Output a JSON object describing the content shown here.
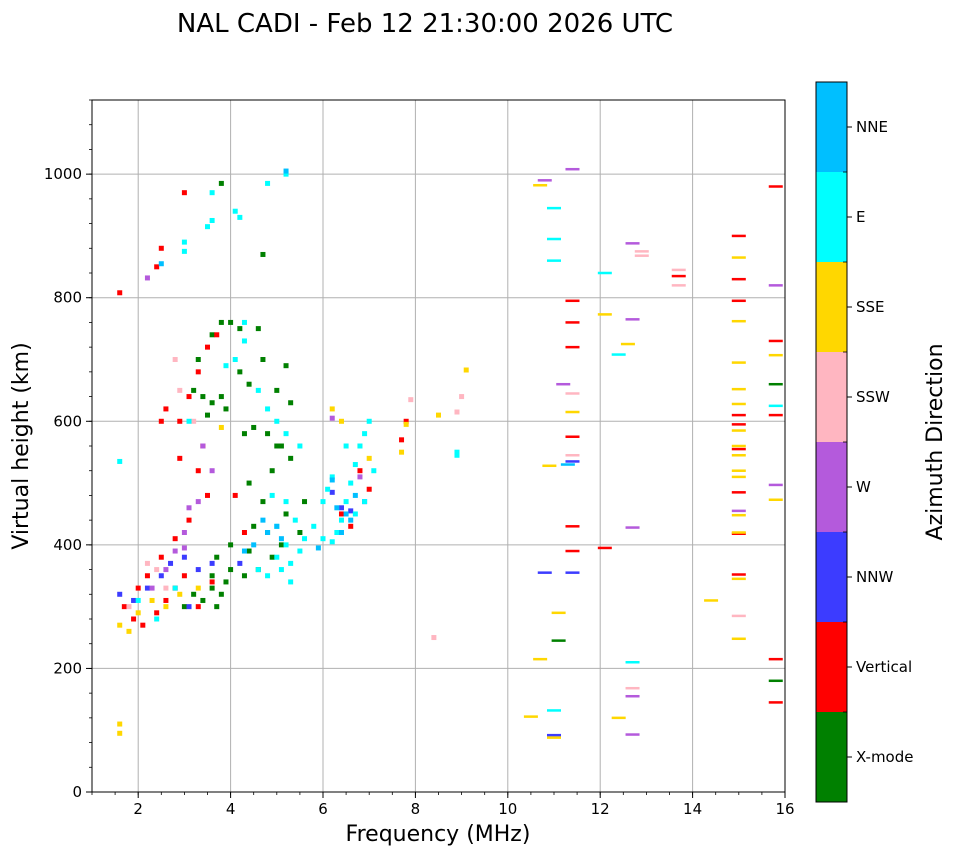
{
  "chart_data": {
    "type": "scatter",
    "title": "NAL CADI - Feb 12 21:30:00 2026 UTC",
    "xlabel": "Frequency (MHz)",
    "ylabel": "Virtual height (km)",
    "xlim": [
      1,
      16
    ],
    "ylim": [
      0,
      1120
    ],
    "xticks": [
      2,
      4,
      6,
      8,
      10,
      12,
      14,
      16
    ],
    "yticks": [
      0,
      200,
      400,
      600,
      800,
      1000
    ],
    "grid": true,
    "colorbar": {
      "title": "Azimuth Direction",
      "entries": [
        {
          "name": "X-mode",
          "color": "#008000"
        },
        {
          "name": "Vertical",
          "color": "#ff0000"
        },
        {
          "name": "NNW",
          "color": "#3c3cff"
        },
        {
          "name": "W",
          "color": "#b45adc"
        },
        {
          "name": "SSW",
          "color": "#ffb6c1"
        },
        {
          "name": "SSE",
          "color": "#ffd700"
        },
        {
          "name": "E",
          "color": "#00ffff"
        },
        {
          "name": "NNE",
          "color": "#00bfff"
        }
      ]
    },
    "series": [
      {
        "name": "X-mode",
        "points": [
          [
            3.2,
            650
          ],
          [
            3.4,
            640
          ],
          [
            3.6,
            630
          ],
          [
            3.8,
            640
          ],
          [
            3.5,
            610
          ],
          [
            3.9,
            620
          ],
          [
            3.3,
            700
          ],
          [
            3.6,
            740
          ],
          [
            3.8,
            760
          ],
          [
            4.0,
            760
          ],
          [
            4.2,
            750
          ],
          [
            4.6,
            750
          ],
          [
            4.2,
            680
          ],
          [
            4.4,
            660
          ],
          [
            4.7,
            700
          ],
          [
            5.0,
            650
          ],
          [
            5.2,
            690
          ],
          [
            5.3,
            630
          ],
          [
            4.5,
            590
          ],
          [
            4.8,
            580
          ],
          [
            5.0,
            560
          ],
          [
            5.3,
            540
          ],
          [
            4.9,
            520
          ],
          [
            4.4,
            500
          ],
          [
            4.7,
            470
          ],
          [
            5.2,
            450
          ],
          [
            4.5,
            430
          ],
          [
            4.8,
            420
          ],
          [
            4.0,
            400
          ],
          [
            4.4,
            390
          ],
          [
            3.7,
            380
          ],
          [
            4.0,
            360
          ],
          [
            4.3,
            350
          ],
          [
            4.6,
            360
          ],
          [
            3.6,
            350
          ],
          [
            3.9,
            340
          ],
          [
            3.6,
            330
          ],
          [
            3.8,
            320
          ],
          [
            3.2,
            320
          ],
          [
            3.4,
            310
          ],
          [
            3.7,
            300
          ],
          [
            3.0,
            300
          ],
          [
            4.9,
            380
          ],
          [
            5.1,
            400
          ],
          [
            5.5,
            420
          ],
          [
            4.7,
            870
          ],
          [
            3.8,
            985
          ],
          [
            4.3,
            580
          ],
          [
            5.6,
            470
          ],
          [
            5.1,
            560
          ],
          [
            15.8,
            660
          ],
          [
            15.8,
            180
          ],
          [
            11.1,
            245
          ]
        ]
      },
      {
        "name": "Vertical",
        "points": [
          [
            1.6,
            808
          ],
          [
            2.5,
            880
          ],
          [
            2.4,
            850
          ],
          [
            3.0,
            970
          ],
          [
            2.5,
            600
          ],
          [
            2.6,
            620
          ],
          [
            2.9,
            600
          ],
          [
            3.1,
            640
          ],
          [
            3.3,
            680
          ],
          [
            3.5,
            720
          ],
          [
            3.7,
            740
          ],
          [
            3.4,
            560
          ],
          [
            2.9,
            540
          ],
          [
            3.3,
            520
          ],
          [
            3.5,
            480
          ],
          [
            3.1,
            440
          ],
          [
            2.8,
            410
          ],
          [
            2.5,
            380
          ],
          [
            2.2,
            350
          ],
          [
            2.0,
            330
          ],
          [
            1.7,
            300
          ],
          [
            1.9,
            280
          ],
          [
            2.1,
            270
          ],
          [
            2.4,
            290
          ],
          [
            2.6,
            310
          ],
          [
            2.8,
            330
          ],
          [
            3.0,
            350
          ],
          [
            3.3,
            300
          ],
          [
            3.6,
            340
          ],
          [
            4.1,
            480
          ],
          [
            4.3,
            420
          ],
          [
            6.8,
            520
          ],
          [
            7.0,
            490
          ],
          [
            7.8,
            600
          ],
          [
            7.7,
            570
          ],
          [
            6.4,
            450
          ],
          [
            6.6,
            430
          ],
          [
            11.4,
            795
          ],
          [
            11.4,
            760
          ],
          [
            11.4,
            720
          ],
          [
            11.4,
            575
          ],
          [
            11.4,
            430
          ],
          [
            11.4,
            390
          ],
          [
            12.1,
            395
          ],
          [
            13.7,
            835
          ],
          [
            15.0,
            900
          ],
          [
            15.0,
            830
          ],
          [
            15.0,
            795
          ],
          [
            15.0,
            610
          ],
          [
            15.0,
            595
          ],
          [
            15.0,
            555
          ],
          [
            15.0,
            485
          ],
          [
            15.0,
            418
          ],
          [
            15.0,
            352
          ],
          [
            15.8,
            980
          ],
          [
            15.8,
            730
          ],
          [
            15.8,
            610
          ],
          [
            15.8,
            215
          ],
          [
            15.8,
            145
          ]
        ]
      },
      {
        "name": "NNW",
        "points": [
          [
            1.6,
            320
          ],
          [
            1.9,
            310
          ],
          [
            2.2,
            330
          ],
          [
            2.5,
            350
          ],
          [
            2.7,
            370
          ],
          [
            3.0,
            380
          ],
          [
            3.3,
            360
          ],
          [
            3.6,
            370
          ],
          [
            3.1,
            300
          ],
          [
            4.2,
            370
          ],
          [
            6.4,
            460
          ],
          [
            6.6,
            455
          ],
          [
            6.9,
            470
          ],
          [
            6.2,
            485
          ],
          [
            10.8,
            355
          ],
          [
            11.4,
            355
          ],
          [
            11.4,
            535
          ],
          [
            11.0,
            92
          ]
        ]
      },
      {
        "name": "W",
        "points": [
          [
            2.2,
            832
          ],
          [
            2.8,
            390
          ],
          [
            3.0,
            420
          ],
          [
            3.3,
            470
          ],
          [
            3.6,
            520
          ],
          [
            3.0,
            395
          ],
          [
            2.6,
            360
          ],
          [
            2.3,
            330
          ],
          [
            3.4,
            560
          ],
          [
            3.1,
            460
          ],
          [
            6.2,
            605
          ],
          [
            6.8,
            510
          ],
          [
            10.8,
            990
          ],
          [
            11.2,
            660
          ],
          [
            11.4,
            1008
          ],
          [
            12.7,
            888
          ],
          [
            12.7,
            765
          ],
          [
            12.7,
            428
          ],
          [
            12.7,
            155
          ],
          [
            12.7,
            93
          ],
          [
            15.0,
            455
          ],
          [
            15.8,
            820
          ],
          [
            15.8,
            497
          ]
        ]
      },
      {
        "name": "SSW",
        "points": [
          [
            2.8,
            700
          ],
          [
            2.9,
            650
          ],
          [
            3.2,
            600
          ],
          [
            2.2,
            370
          ],
          [
            2.4,
            360
          ],
          [
            2.6,
            330
          ],
          [
            1.8,
            300
          ],
          [
            7.9,
            635
          ],
          [
            8.4,
            250
          ],
          [
            8.9,
            615
          ],
          [
            9.0,
            640
          ],
          [
            11.4,
            645
          ],
          [
            11.4,
            545
          ],
          [
            12.9,
            875
          ],
          [
            12.9,
            868
          ],
          [
            13.7,
            845
          ],
          [
            13.7,
            820
          ],
          [
            12.7,
            168
          ],
          [
            15.0,
            285
          ]
        ]
      },
      {
        "name": "SSE",
        "points": [
          [
            1.6,
            110
          ],
          [
            1.6,
            95
          ],
          [
            1.6,
            270
          ],
          [
            1.8,
            260
          ],
          [
            2.0,
            290
          ],
          [
            2.3,
            310
          ],
          [
            2.6,
            300
          ],
          [
            2.9,
            320
          ],
          [
            3.3,
            330
          ],
          [
            3.8,
            590
          ],
          [
            6.2,
            620
          ],
          [
            6.4,
            600
          ],
          [
            6.8,
            560
          ],
          [
            7.0,
            540
          ],
          [
            7.8,
            595
          ],
          [
            7.7,
            550
          ],
          [
            8.5,
            610
          ],
          [
            9.1,
            683
          ],
          [
            10.7,
            982
          ],
          [
            10.9,
            528
          ],
          [
            10.7,
            215
          ],
          [
            10.5,
            122
          ],
          [
            11.1,
            290
          ],
          [
            11.4,
            615
          ],
          [
            11.0,
            88
          ],
          [
            12.1,
            773
          ],
          [
            12.6,
            725
          ],
          [
            12.4,
            120
          ],
          [
            14.4,
            310
          ],
          [
            15.0,
            865
          ],
          [
            15.0,
            762
          ],
          [
            15.0,
            695
          ],
          [
            15.0,
            652
          ],
          [
            15.0,
            628
          ],
          [
            15.0,
            585
          ],
          [
            15.0,
            560
          ],
          [
            15.0,
            545
          ],
          [
            15.0,
            520
          ],
          [
            15.0,
            510
          ],
          [
            15.0,
            448
          ],
          [
            15.0,
            420
          ],
          [
            15.0,
            345
          ],
          [
            15.0,
            248
          ],
          [
            15.8,
            707
          ],
          [
            15.8,
            473
          ]
        ]
      },
      {
        "name": "E",
        "points": [
          [
            3.0,
            890
          ],
          [
            3.0,
            875
          ],
          [
            3.6,
            925
          ],
          [
            3.5,
            915
          ],
          [
            3.6,
            970
          ],
          [
            4.1,
            940
          ],
          [
            4.2,
            930
          ],
          [
            4.8,
            985
          ],
          [
            5.2,
            1000
          ],
          [
            4.3,
            760
          ],
          [
            4.3,
            730
          ],
          [
            4.1,
            700
          ],
          [
            3.9,
            690
          ],
          [
            4.6,
            650
          ],
          [
            4.8,
            620
          ],
          [
            5.0,
            600
          ],
          [
            5.2,
            580
          ],
          [
            5.5,
            560
          ],
          [
            4.9,
            480
          ],
          [
            5.2,
            470
          ],
          [
            5.4,
            440
          ],
          [
            5.0,
            430
          ],
          [
            5.2,
            400
          ],
          [
            5.5,
            390
          ],
          [
            5.0,
            380
          ],
          [
            5.3,
            370
          ],
          [
            5.1,
            360
          ],
          [
            4.8,
            350
          ],
          [
            5.3,
            340
          ],
          [
            4.6,
            360
          ],
          [
            5.6,
            410
          ],
          [
            5.8,
            430
          ],
          [
            6.0,
            410
          ],
          [
            6.2,
            405
          ],
          [
            6.3,
            420
          ],
          [
            6.4,
            440
          ],
          [
            6.5,
            470
          ],
          [
            6.6,
            500
          ],
          [
            6.7,
            530
          ],
          [
            6.8,
            560
          ],
          [
            6.9,
            580
          ],
          [
            7.0,
            600
          ],
          [
            6.5,
            560
          ],
          [
            6.9,
            470
          ],
          [
            6.7,
            450
          ],
          [
            7.1,
            520
          ],
          [
            6.2,
            510
          ],
          [
            6.1,
            490
          ],
          [
            6.0,
            470
          ],
          [
            1.6,
            535
          ],
          [
            2.0,
            310
          ],
          [
            2.4,
            280
          ],
          [
            2.8,
            330
          ],
          [
            3.1,
            600
          ],
          [
            11.0,
            945
          ],
          [
            11.0,
            895
          ],
          [
            11.0,
            860
          ],
          [
            12.1,
            840
          ],
          [
            12.4,
            708
          ],
          [
            12.7,
            210
          ],
          [
            11.0,
            132
          ],
          [
            15.8,
            625
          ],
          [
            8.9,
            545
          ],
          [
            8.9,
            550
          ]
        ]
      },
      {
        "name": "NNE",
        "points": [
          [
            2.5,
            855
          ],
          [
            5.2,
            1005
          ],
          [
            5.0,
            430
          ],
          [
            4.8,
            420
          ],
          [
            5.1,
            410
          ],
          [
            4.5,
            400
          ],
          [
            4.7,
            440
          ],
          [
            4.3,
            390
          ],
          [
            6.3,
            460
          ],
          [
            6.5,
            450
          ],
          [
            6.7,
            480
          ],
          [
            6.4,
            420
          ],
          [
            6.6,
            440
          ],
          [
            6.2,
            505
          ],
          [
            5.9,
            395
          ],
          [
            11.3,
            530
          ]
        ]
      }
    ]
  }
}
